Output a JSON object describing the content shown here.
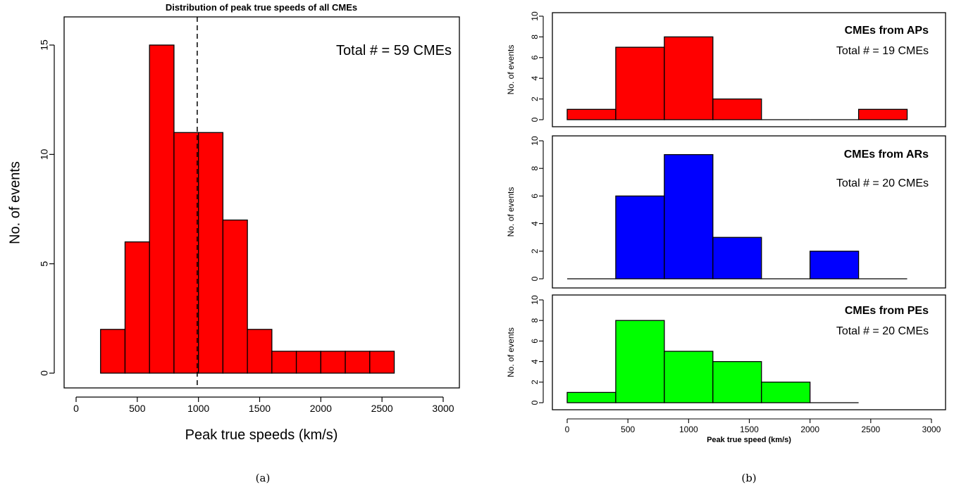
{
  "chart_data": [
    {
      "type": "bar",
      "title": "Distribution of peak true speeds of all CMEs",
      "xlabel": "Peak true speeds (km/s)",
      "ylabel": "No. of events",
      "annotation": "Total # = 59 CMEs",
      "xlim": [
        0,
        3000
      ],
      "ylim": [
        0,
        15
      ],
      "xticks": [
        0,
        500,
        1000,
        1500,
        2000,
        2500,
        3000
      ],
      "yticks": [
        0,
        5,
        10,
        15
      ],
      "bin_edges": [
        200,
        400,
        600,
        800,
        1000,
        1200,
        1400,
        1600,
        1800,
        2000,
        2200,
        2400,
        2600
      ],
      "values": [
        2,
        6,
        15,
        11,
        11,
        7,
        2,
        1,
        1,
        1,
        1,
        1
      ],
      "mean_line_x": 990,
      "fill": "#ff0000",
      "caption": "(a)"
    },
    {
      "type": "bar",
      "title": "CMEs from APs",
      "annotation": "Total # = 19 CMEs",
      "ylabel": "No. of events",
      "xlim": [
        0,
        3000
      ],
      "ylim": [
        0,
        10
      ],
      "yticks": [
        0,
        2,
        4,
        6,
        8,
        10
      ],
      "bin_edges": [
        0,
        400,
        800,
        1200,
        1600,
        2000,
        2400,
        2800
      ],
      "values": [
        1,
        7,
        8,
        2,
        0,
        0,
        1
      ],
      "fill": "#ff0000"
    },
    {
      "type": "bar",
      "title": "CMEs from ARs",
      "annotation": "Total # = 20 CMEs",
      "ylabel": "No. of events",
      "xlim": [
        0,
        3000
      ],
      "ylim": [
        0,
        10
      ],
      "yticks": [
        0,
        2,
        4,
        6,
        8,
        10
      ],
      "bin_edges": [
        0,
        400,
        800,
        1200,
        1600,
        2000,
        2400,
        2800
      ],
      "values": [
        0,
        6,
        9,
        3,
        0,
        2,
        0
      ],
      "fill": "#0000ff"
    },
    {
      "type": "bar",
      "title": "CMEs from PEs",
      "annotation": "Total # = 20 CMEs",
      "ylabel": "No. of events",
      "xlabel": "Peak true speed (km/s)",
      "xlim": [
        0,
        3000
      ],
      "ylim": [
        0,
        10
      ],
      "yticks": [
        0,
        2,
        4,
        6,
        8,
        10
      ],
      "xticks": [
        0,
        500,
        1000,
        1500,
        2000,
        2500,
        3000
      ],
      "bin_edges": [
        0,
        400,
        800,
        1200,
        1600,
        2000,
        2400
      ],
      "values": [
        1,
        8,
        5,
        4,
        2,
        0
      ],
      "fill": "#00ff00",
      "caption": "(b)"
    }
  ]
}
